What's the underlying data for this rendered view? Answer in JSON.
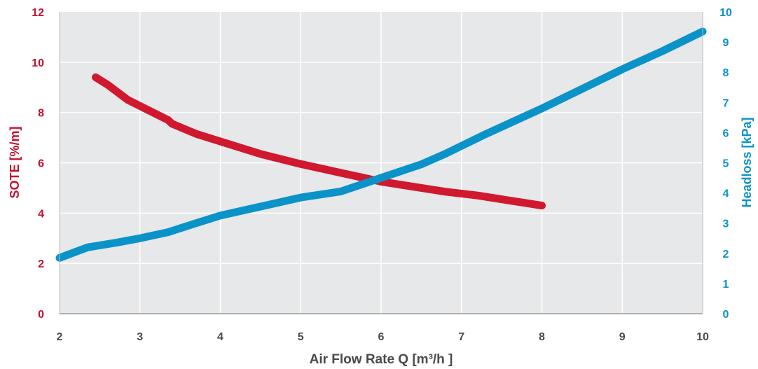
{
  "chart_data": {
    "type": "line",
    "xlabel": "Air Flow Rate Q [m³/h ]",
    "xlim": [
      2,
      10
    ],
    "x_ticks": [
      "2",
      "3",
      "4",
      "5",
      "6",
      "7",
      "8",
      "9",
      "10"
    ],
    "y_axes": {
      "left": {
        "label": "SOTE [%/m]",
        "lim": [
          0,
          12
        ],
        "ticks": [
          "0",
          "2",
          "4",
          "6",
          "8",
          "10",
          "12"
        ],
        "color": "#c8102e"
      },
      "right": {
        "label": "Headloss [kPa]",
        "lim": [
          0,
          10
        ],
        "ticks": [
          "0",
          "1",
          "2",
          "3",
          "4",
          "5",
          "6",
          "7",
          "8",
          "9",
          "10"
        ],
        "color": "#0a93c9"
      }
    },
    "series": [
      {
        "axis": "left",
        "color": "#d0182f",
        "points": [
          [
            2.45,
            9.4
          ],
          [
            2.6,
            9.1
          ],
          [
            2.85,
            8.5
          ],
          [
            3.1,
            8.1
          ],
          [
            3.35,
            7.7
          ],
          [
            3.4,
            7.55
          ],
          [
            3.7,
            7.15
          ],
          [
            4.0,
            6.85
          ],
          [
            4.5,
            6.35
          ],
          [
            5.0,
            5.95
          ],
          [
            5.5,
            5.6
          ],
          [
            6.0,
            5.25
          ],
          [
            6.5,
            5.0
          ],
          [
            6.8,
            4.85
          ],
          [
            7.2,
            4.7
          ],
          [
            7.6,
            4.5
          ],
          [
            8.0,
            4.3
          ]
        ]
      },
      {
        "axis": "right",
        "color": "#0a93c9",
        "points": [
          [
            2.0,
            1.85
          ],
          [
            2.35,
            2.2
          ],
          [
            2.7,
            2.35
          ],
          [
            3.0,
            2.5
          ],
          [
            3.35,
            2.7
          ],
          [
            3.7,
            3.0
          ],
          [
            4.0,
            3.25
          ],
          [
            4.5,
            3.55
          ],
          [
            5.0,
            3.85
          ],
          [
            5.5,
            4.05
          ],
          [
            6.0,
            4.5
          ],
          [
            6.5,
            4.95
          ],
          [
            6.8,
            5.3
          ],
          [
            7.3,
            5.95
          ],
          [
            8.0,
            6.8
          ],
          [
            8.5,
            7.45
          ],
          [
            9.0,
            8.1
          ],
          [
            9.5,
            8.7
          ],
          [
            10.0,
            9.35
          ]
        ]
      }
    ],
    "grid": true,
    "plot_background": "#e7e8ea",
    "grid_color": "#ffffff"
  }
}
